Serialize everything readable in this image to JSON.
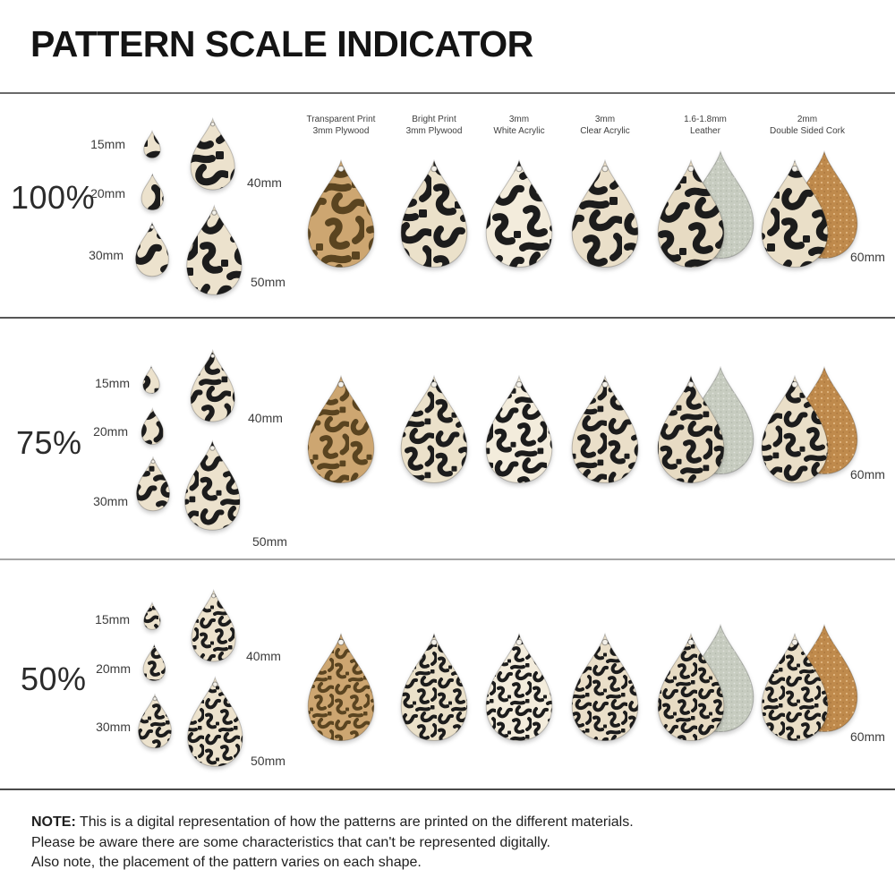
{
  "title": "PATTERN SCALE INDICATOR",
  "rows": [
    {
      "scale": "100%"
    },
    {
      "scale": "75%"
    },
    {
      "scale": "50%"
    }
  ],
  "materials": [
    {
      "line1": "Transparent Print",
      "line2": "3mm Plywood"
    },
    {
      "line1": "Bright Print",
      "line2": "3mm Plywood"
    },
    {
      "line1": "3mm",
      "line2": "White Acrylic"
    },
    {
      "line1": "3mm",
      "line2": "Clear Acrylic"
    },
    {
      "line1": "1.6-1.8mm",
      "line2": "Leather"
    },
    {
      "line1": "2mm",
      "line2": "Double Sided Cork"
    }
  ],
  "size_labels": {
    "mm15": "15mm",
    "mm20": "20mm",
    "mm30": "30mm",
    "mm40": "40mm",
    "mm50": "50mm",
    "mm60": "60mm"
  },
  "note": {
    "label": "NOTE:",
    "lines": [
      "This is a digital representation of how the patterns are printed on the different materials.",
      "Please be aware there are some characteristics that can't be represented digitally.",
      "Also note, the placement of the pattern varies on each shape."
    ]
  },
  "colors": {
    "pattern_black": "#1c1c1c",
    "plywood_tan": "#cda671",
    "plywood_brown": "#5a4420",
    "cream": "#ebe1ca",
    "white_acrylic": "#f3ecdc",
    "clear_acrylic": "#eadfc9",
    "leather_front": "#e7dbc3",
    "suede_back": "#c7ccc0",
    "cork_front": "#eadfc8",
    "cork_back": "#bf8a4c",
    "mini_bg": "#ece2cd"
  }
}
